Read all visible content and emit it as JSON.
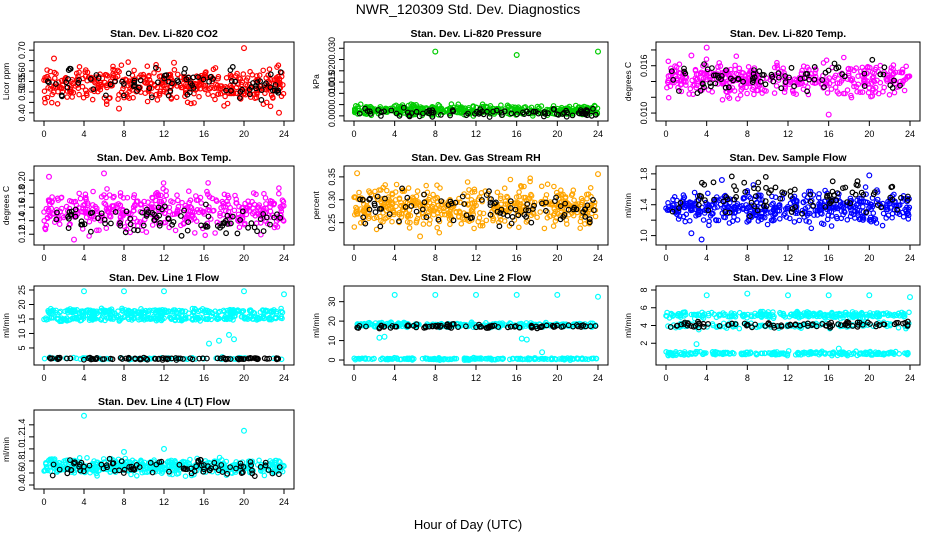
{
  "page": {
    "title": "NWR_120309  Std. Dev. Diagnostics",
    "xlabel": "Hour of Day (UTC)"
  },
  "colors": {
    "axis": "#000000",
    "reference_points": "#000000"
  },
  "chart_data": [
    {
      "type": "scatter",
      "title": "Stan. Dev. Li-820 CO2",
      "xlabel": "",
      "ylabel": "Licor ppm",
      "xlim": [
        0,
        24
      ],
      "xticks": [
        0,
        4,
        8,
        12,
        16,
        20,
        24
      ],
      "ylim": [
        0.38,
        0.72
      ],
      "yticks": [
        0.4,
        0.45,
        0.5,
        0.55,
        0.6,
        0.65,
        0.7
      ],
      "yticklabels": [
        "0.40",
        "",
        "0.50",
        "0.55",
        "0.60",
        "",
        "0.70"
      ],
      "color": "#ff0000",
      "grid": false,
      "band": {
        "mean": 0.535,
        "spread": 0.045,
        "count": 420
      },
      "black": {
        "mean": 0.535,
        "spread": 0.04,
        "count": 90
      },
      "outliers": [
        [
          20,
          0.71
        ],
        [
          1,
          0.66
        ],
        [
          7.5,
          0.42
        ],
        [
          23.5,
          0.4
        ],
        [
          13,
          0.64
        ]
      ]
    },
    {
      "type": "scatter",
      "title": "Stan. Dev. Li-820 Pressure",
      "xlabel": "",
      "ylabel": "kPa",
      "xlim": [
        0,
        24
      ],
      "xticks": [
        0,
        4,
        8,
        12,
        16,
        20,
        24
      ],
      "ylim": [
        -0.0005,
        0.031
      ],
      "yticks": [
        0.0,
        0.005,
        0.01,
        0.015,
        0.02,
        0.025,
        0.03
      ],
      "yticklabels": [
        "0.000",
        "",
        "0.010",
        "0.015",
        "0.020",
        "",
        "0.030"
      ],
      "color": "#00cc00",
      "grid": false,
      "band": {
        "mean": 0.0025,
        "spread": 0.0012,
        "count": 420
      },
      "black": {
        "mean": 0.0015,
        "spread": 0.0012,
        "count": 90
      },
      "outliers": [
        [
          8,
          0.0285
        ],
        [
          16,
          0.027
        ],
        [
          24,
          0.0285
        ]
      ]
    },
    {
      "type": "scatter",
      "title": "Stan. Dev. Li-820 Temp.",
      "xlabel": "",
      "ylabel": "degrees C",
      "xlim": [
        0,
        24
      ],
      "xticks": [
        0,
        4,
        8,
        12,
        16,
        20,
        24
      ],
      "ylim": [
        0.0095,
        0.0185
      ],
      "yticks": [
        0.01,
        0.012,
        0.014,
        0.016,
        0.018
      ],
      "yticklabels": [
        "0.010",
        "",
        "",
        "0.016",
        ""
      ],
      "color": "#ff00ff",
      "grid": false,
      "band": {
        "mean": 0.0143,
        "spread": 0.0011,
        "count": 400
      },
      "black": {
        "mean": 0.0143,
        "spread": 0.0011,
        "count": 80
      },
      "outliers": [
        [
          4,
          0.0183
        ],
        [
          16,
          0.0098
        ],
        [
          2.5,
          0.0173
        ]
      ]
    },
    {
      "type": "scatter",
      "title": "Stan. Dev. Amb. Box Temp.",
      "xlabel": "",
      "ylabel": "degrees C",
      "xlim": [
        0,
        24
      ],
      "xticks": [
        0,
        4,
        8,
        12,
        16,
        20,
        24
      ],
      "ylim": [
        0.11,
        0.215
      ],
      "yticks": [
        0.12,
        0.14,
        0.16,
        0.18,
        0.2
      ],
      "yticklabels": [
        "0.12",
        "0.14",
        "0.16",
        "0.18",
        "0.20"
      ],
      "color": "#ff00ff",
      "grid": false,
      "band": {
        "mean": 0.155,
        "spread": 0.016,
        "count": 420
      },
      "black": {
        "mean": 0.142,
        "spread": 0.012,
        "count": 90
      },
      "outliers": [
        [
          6,
          0.21
        ],
        [
          0.5,
          0.205
        ],
        [
          3,
          0.112
        ]
      ]
    },
    {
      "type": "scatter",
      "title": "Stan. Dev. Gas Stream RH",
      "xlabel": "",
      "ylabel": "percent",
      "xlim": [
        0,
        24
      ],
      "xticks": [
        0,
        4,
        8,
        12,
        16,
        20,
        24
      ],
      "ylim": [
        0.21,
        0.365
      ],
      "yticks": [
        0.25,
        0.3,
        0.35
      ],
      "yticklabels": [
        "0.25",
        "0.30",
        "0.35"
      ],
      "color": "#ffa500",
      "grid": false,
      "band": {
        "mean": 0.285,
        "spread": 0.024,
        "count": 480
      },
      "black": {
        "mean": 0.28,
        "spread": 0.02,
        "count": 90
      },
      "outliers": [
        [
          0.3,
          0.358
        ],
        [
          24,
          0.356
        ],
        [
          6.5,
          0.22
        ]
      ]
    },
    {
      "type": "scatter",
      "title": "Stan. Dev. Sample Flow",
      "xlabel": "",
      "ylabel": "ml/min",
      "xlim": [
        0,
        24
      ],
      "xticks": [
        0,
        4,
        8,
        12,
        16,
        20,
        24
      ],
      "ylim": [
        0.93,
        1.85
      ],
      "yticks": [
        1.0,
        1.2,
        1.4,
        1.6,
        1.8
      ],
      "yticklabels": [
        "1.0",
        "",
        "1.4",
        "",
        "1.8"
      ],
      "color": "#0000ff",
      "grid": false,
      "band": {
        "mean": 1.36,
        "spread": 0.11,
        "count": 450
      },
      "black": {
        "mean": 1.5,
        "spread": 0.12,
        "count": 90
      },
      "outliers": [
        [
          3.5,
          0.95
        ],
        [
          2.5,
          1.03
        ],
        [
          20,
          1.78
        ],
        [
          5.5,
          1.72
        ]
      ]
    },
    {
      "type": "scatter",
      "title": "Stan. Dev. Line 1 Flow",
      "xlabel": "",
      "ylabel": "ml/min",
      "xlim": [
        0,
        24
      ],
      "xticks": [
        0,
        4,
        8,
        12,
        16,
        20,
        24
      ],
      "ylim": [
        0.5,
        25
      ],
      "yticks": [
        5,
        10,
        15,
        20,
        25
      ],
      "yticklabels": [
        "5",
        "10",
        "15",
        "20",
        "25"
      ],
      "color": "#00ffff",
      "grid": false,
      "bands": [
        {
          "mean": 17.6,
          "spread": 0.5,
          "count": 220
        },
        {
          "mean": 15.3,
          "spread": 0.5,
          "count": 220
        }
      ],
      "black": {
        "mean": 1.3,
        "spread": 0.2,
        "count": 90
      },
      "cyan_low": {
        "mean": 1.3,
        "spread": 0.2,
        "count": 60
      },
      "outliers": [
        [
          4,
          24.6
        ],
        [
          8,
          24.6
        ],
        [
          12,
          24.6
        ],
        [
          20,
          24.6
        ],
        [
          24,
          23.5
        ],
        [
          16.5,
          6.5
        ],
        [
          17.5,
          7.5
        ],
        [
          18.5,
          9.5
        ],
        [
          19,
          8
        ]
      ]
    },
    {
      "type": "scatter",
      "title": "Stan. Dev. Line 2 Flow",
      "xlabel": "",
      "ylabel": "ml/min",
      "xlim": [
        0,
        24
      ],
      "xticks": [
        0,
        4,
        8,
        12,
        16,
        20,
        24
      ],
      "ylim": [
        -0.5,
        36
      ],
      "yticks": [
        0,
        10,
        20,
        30
      ],
      "yticklabels": [
        "0",
        "10",
        "20",
        "30"
      ],
      "color": "#00ffff",
      "grid": false,
      "bands": [
        {
          "mean": 18.0,
          "spread": 0.7,
          "count": 260
        },
        {
          "mean": 0.6,
          "spread": 0.3,
          "count": 200
        }
      ],
      "black": {
        "mean": 17.3,
        "spread": 0.5,
        "count": 90
      },
      "outliers": [
        [
          4,
          33.5
        ],
        [
          8,
          33.5
        ],
        [
          12,
          33.5
        ],
        [
          16,
          33.5
        ],
        [
          20,
          33.5
        ],
        [
          24,
          32.5
        ],
        [
          16.5,
          11
        ],
        [
          17,
          10.5
        ],
        [
          18.5,
          4
        ],
        [
          2.5,
          11.5
        ],
        [
          3,
          12
        ]
      ]
    },
    {
      "type": "scatter",
      "title": "Stan. Dev. Line 3 Flow",
      "xlabel": "",
      "ylabel": "ml/min",
      "xlim": [
        0,
        24
      ],
      "xticks": [
        0,
        4,
        8,
        12,
        16,
        20,
        24
      ],
      "ylim": [
        0,
        8
      ],
      "yticks": [
        2,
        4,
        6,
        8
      ],
      "yticklabels": [
        "2",
        "4",
        "6",
        "8"
      ],
      "color": "#00ffff",
      "grid": false,
      "bands": [
        {
          "mean": 5.2,
          "spread": 0.2,
          "count": 240
        },
        {
          "mean": 4.0,
          "spread": 0.2,
          "count": 120
        },
        {
          "mean": 0.85,
          "spread": 0.12,
          "count": 220
        }
      ],
      "black": {
        "mean": 4.1,
        "spread": 0.18,
        "count": 90
      },
      "outliers": [
        [
          4,
          7.4
        ],
        [
          8,
          7.6
        ],
        [
          12,
          7.4
        ],
        [
          16,
          7.4
        ],
        [
          20,
          7.4
        ],
        [
          24,
          7.2
        ],
        [
          3,
          1.9
        ],
        [
          17,
          1.4
        ]
      ]
    },
    {
      "type": "scatter",
      "title": "Stan. Dev. Line 4 (LT) Flow",
      "xlabel": "",
      "ylabel": "ml/min",
      "xlim": [
        0,
        24
      ],
      "xticks": [
        0,
        4,
        8,
        12,
        16,
        20,
        24
      ],
      "ylim": [
        0.4,
        1.58
      ],
      "yticks": [
        0.4,
        0.6,
        0.8,
        1.0,
        1.2,
        1.4
      ],
      "yticklabels": [
        "0.4",
        "0.6",
        "0.8",
        "1.0",
        "1.2",
        "1.4"
      ],
      "color": "#00ffff",
      "grid": false,
      "band": {
        "mean": 0.71,
        "spread": 0.07,
        "count": 460
      },
      "black": {
        "mean": 0.69,
        "spread": 0.07,
        "count": 90
      },
      "outliers": [
        [
          4,
          1.55
        ],
        [
          20,
          1.3
        ],
        [
          12,
          1.0
        ],
        [
          8,
          0.95
        ]
      ]
    }
  ]
}
